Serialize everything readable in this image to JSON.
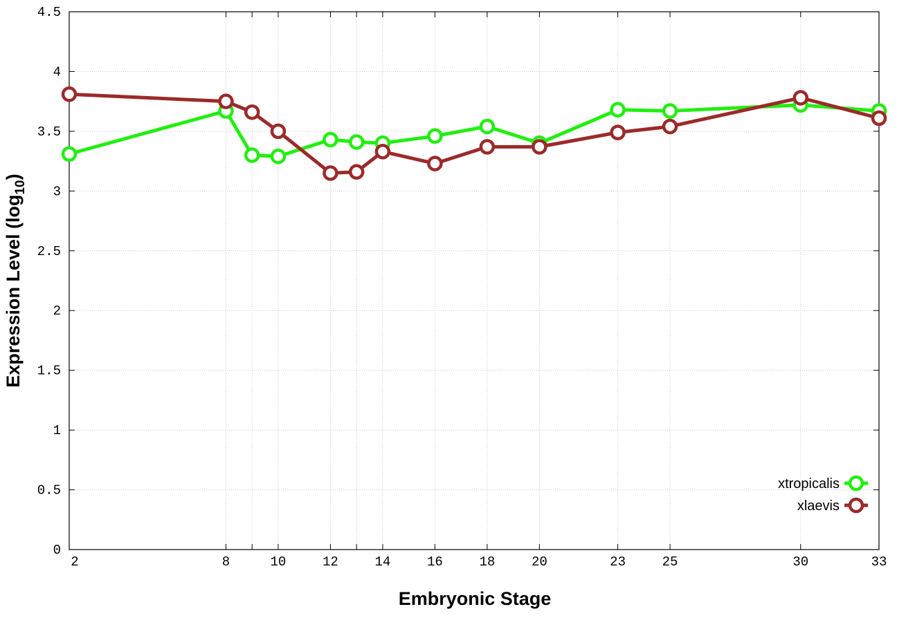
{
  "chart_data": {
    "type": "line",
    "title": "",
    "xlabel": "Embryonic Stage",
    "ylabel": {
      "main": "Expression Level (log",
      "sub": "10",
      "suffix": ")"
    },
    "xlim": [
      2,
      33
    ],
    "ylim": [
      0,
      4.5
    ],
    "x_ticks": [
      2,
      8,
      10,
      12,
      14,
      16,
      18,
      20,
      23,
      25,
      30,
      33
    ],
    "x_gridlines": [
      2,
      8,
      9,
      10,
      12,
      13,
      14,
      16,
      18,
      20,
      23,
      25,
      30,
      33
    ],
    "y_ticks": [
      "0",
      "0.5",
      "1",
      "1.5",
      "2",
      "2.5",
      "3",
      "3.5",
      "4",
      "4.5"
    ],
    "grid": true,
    "legend_position": "bottom-right",
    "x": [
      2,
      8,
      9,
      10,
      12,
      13,
      14,
      16,
      18,
      20,
      23,
      25,
      30,
      33
    ],
    "series": [
      {
        "name": "xtropicalis",
        "color": "#22ee11",
        "values": [
          3.31,
          3.67,
          3.3,
          3.29,
          3.43,
          3.41,
          3.4,
          3.46,
          3.54,
          3.4,
          3.68,
          3.67,
          3.72,
          3.67
        ]
      },
      {
        "name": "xlaevis",
        "color": "#9b2a2a",
        "values": [
          3.81,
          3.75,
          3.66,
          3.5,
          3.15,
          3.16,
          3.33,
          3.23,
          3.37,
          3.37,
          3.49,
          3.54,
          3.78,
          3.61
        ]
      }
    ]
  }
}
